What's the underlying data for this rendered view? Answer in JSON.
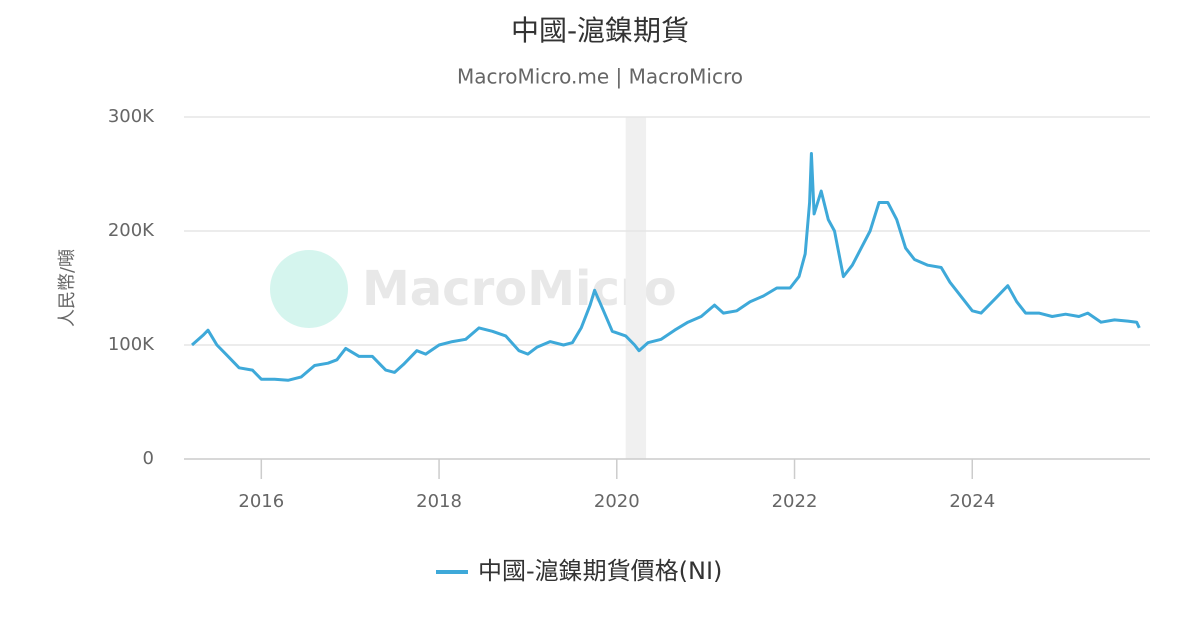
{
  "chart_data": {
    "type": "line",
    "title": "中國-滬鎳期貨",
    "subtitle": "MacroMicro.me | MacroMicro",
    "watermark": "MacroMicro",
    "y_label": "人民幣/噸",
    "xlim": [
      2015.13,
      2026.0
    ],
    "xticks": [
      2016,
      2018,
      2020,
      2022,
      2024
    ],
    "ylim": [
      0,
      300000
    ],
    "yticks": [
      0,
      {
        "value": 100000,
        "label": "100K"
      },
      {
        "value": 200000,
        "label": "200K"
      },
      {
        "value": 300000,
        "label": "300K"
      }
    ],
    "grid": true,
    "shaded_regions": [
      {
        "from": 2020.1,
        "to": 2020.33
      }
    ],
    "x": [
      2015.22,
      2015.35,
      2015.4,
      2015.5,
      2015.6,
      2015.75,
      2015.9,
      2016.0,
      2016.15,
      2016.3,
      2016.45,
      2016.6,
      2016.75,
      2016.85,
      2016.95,
      2017.1,
      2017.25,
      2017.4,
      2017.5,
      2017.6,
      2017.75,
      2017.85,
      2018.0,
      2018.15,
      2018.3,
      2018.45,
      2018.6,
      2018.75,
      2018.9,
      2019.0,
      2019.1,
      2019.25,
      2019.4,
      2019.5,
      2019.6,
      2019.7,
      2019.75,
      2019.85,
      2019.95,
      2020.1,
      2020.2,
      2020.25,
      2020.35,
      2020.5,
      2020.65,
      2020.8,
      2020.95,
      2021.1,
      2021.2,
      2021.35,
      2021.5,
      2021.65,
      2021.8,
      2021.95,
      2022.05,
      2022.12,
      2022.17,
      2022.19,
      2022.22,
      2022.3,
      2022.38,
      2022.45,
      2022.55,
      2022.65,
      2022.75,
      2022.85,
      2022.95,
      2023.05,
      2023.15,
      2023.25,
      2023.35,
      2023.5,
      2023.65,
      2023.75,
      2023.9,
      2024.0,
      2024.1,
      2024.25,
      2024.4,
      2024.5,
      2024.6,
      2024.75,
      2024.9,
      2025.05,
      2025.2,
      2025.3,
      2025.45,
      2025.6,
      2025.75,
      2025.85,
      2025.88
    ],
    "series": [
      {
        "name": "中國-滬鎳期貨價格(NI)",
        "color": "#3ea9d9",
        "values": [
          100000,
          109000,
          113000,
          100000,
          92000,
          80000,
          78000,
          70000,
          70000,
          69000,
          72000,
          82000,
          84000,
          87000,
          97000,
          90000,
          90000,
          78000,
          76000,
          83000,
          95000,
          92000,
          100000,
          103000,
          105000,
          115000,
          112000,
          108000,
          95000,
          92000,
          98000,
          103000,
          100000,
          102000,
          115000,
          135000,
          148000,
          130000,
          112000,
          108000,
          100000,
          95000,
          102000,
          105000,
          113000,
          120000,
          125000,
          135000,
          128000,
          130000,
          138000,
          143000,
          150000,
          150000,
          160000,
          180000,
          225000,
          268000,
          215000,
          235000,
          210000,
          200000,
          160000,
          170000,
          185000,
          200000,
          225000,
          225000,
          210000,
          185000,
          175000,
          170000,
          168000,
          155000,
          140000,
          130000,
          128000,
          140000,
          152000,
          138000,
          128000,
          128000,
          125000,
          127000,
          125000,
          128000,
          120000,
          122000,
          121000,
          120000,
          115000
        ]
      }
    ]
  }
}
